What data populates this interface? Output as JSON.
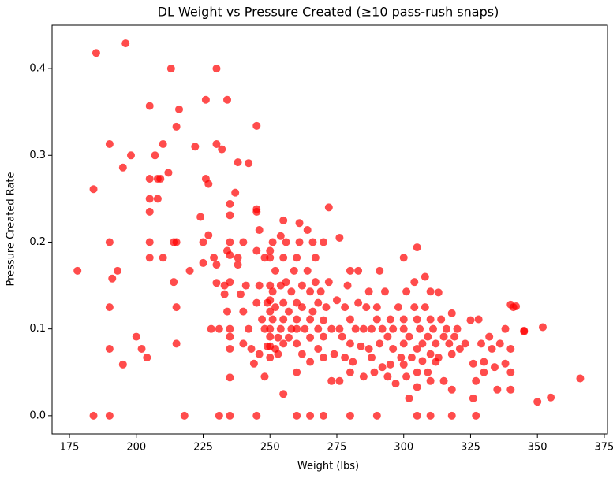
{
  "chart_data": {
    "type": "scatter",
    "title": "DL Weight vs Pressure Created (≥10 pass-rush snaps)",
    "x_label": "Weight (lbs)",
    "y_label": "Pressure Created Rate",
    "color": "#ff0000",
    "xlim": [
      168.5,
      376.2
    ],
    "ylim": [
      -0.021,
      0.45
    ],
    "xticks": [
      175,
      200,
      225,
      250,
      275,
      300,
      325,
      350,
      375
    ],
    "yticks": [
      {
        "value": 0,
        "label": "0.0"
      },
      0.1,
      0.2,
      0.3,
      0.4
    ],
    "x": [
      178,
      184,
      184,
      185,
      190,
      190,
      190,
      190,
      190,
      191,
      193,
      195,
      195,
      196,
      198,
      200,
      202,
      204,
      205,
      205,
      205,
      205,
      205,
      205,
      207,
      208,
      208,
      209,
      210,
      210,
      212,
      213,
      214,
      214,
      215,
      215,
      215,
      215,
      216,
      218,
      220,
      222,
      224,
      225,
      225,
      226,
      226,
      227,
      227,
      228,
      229,
      230,
      230,
      230,
      230,
      231,
      231,
      232,
      233,
      233,
      234,
      234,
      234,
      235,
      235,
      235,
      235,
      235,
      235,
      235,
      235,
      235,
      235,
      237,
      238,
      238,
      238,
      239,
      240,
      240,
      240,
      241,
      242,
      242,
      243,
      244,
      245,
      245,
      245,
      245,
      245,
      245,
      246,
      246,
      246,
      247,
      248,
      248,
      248,
      249,
      249,
      250,
      250,
      250,
      250,
      250,
      250,
      250,
      250,
      250,
      251,
      251,
      251,
      252,
      252,
      252,
      253,
      253,
      254,
      254,
      254,
      255,
      255,
      255,
      255,
      255,
      255,
      256,
      256,
      257,
      257,
      258,
      258,
      259,
      260,
      260,
      260,
      260,
      260,
      260,
      260,
      261,
      261,
      262,
      262,
      262,
      263,
      264,
      264,
      265,
      265,
      265,
      265,
      265,
      266,
      266,
      267,
      267,
      268,
      268,
      268,
      269,
      270,
      270,
      270,
      270,
      270,
      271,
      272,
      272,
      273,
      273,
      274,
      275,
      276,
      276,
      276,
      277,
      278,
      278,
      279,
      280,
      280,
      280,
      280,
      280,
      281,
      282,
      283,
      283,
      284,
      285,
      285,
      286,
      287,
      287,
      288,
      288,
      289,
      290,
      290,
      290,
      291,
      291,
      292,
      292,
      293,
      294,
      294,
      295,
      295,
      296,
      296,
      297,
      298,
      299,
      300,
      300,
      300,
      300,
      300,
      301,
      301,
      302,
      302,
      303,
      304,
      304,
      305,
      305,
      305,
      305,
      305,
      305,
      306,
      307,
      307,
      308,
      308,
      309,
      309,
      310,
      310,
      310,
      310,
      310,
      311,
      312,
      312,
      313,
      313,
      314,
      315,
      315,
      316,
      317,
      318,
      318,
      318,
      318,
      319,
      320,
      321,
      323,
      325,
      326,
      326,
      327,
      327,
      328,
      329,
      330,
      330,
      332,
      333,
      334,
      335,
      336,
      338,
      338,
      340,
      340,
      340,
      340,
      341,
      342,
      345,
      345,
      350,
      352,
      355,
      366
    ],
    "values": [
      0.167,
      0.261,
      0,
      0.418,
      0,
      0.313,
      0.2,
      0.125,
      0.077,
      0.158,
      0.167,
      0.286,
      0.059,
      0.429,
      0.3,
      0.091,
      0.077,
      0.067,
      0.357,
      0.273,
      0.25,
      0.235,
      0.2,
      0.182,
      0.3,
      0.273,
      0.25,
      0.273,
      0.313,
      0.182,
      0.28,
      0.4,
      0.2,
      0.154,
      0.333,
      0.2,
      0.125,
      0.083,
      0.353,
      0,
      0.167,
      0.31,
      0.229,
      0.176,
      0.2,
      0.273,
      0.364,
      0.267,
      0.208,
      0.1,
      0.182,
      0.4,
      0.313,
      0.174,
      0.153,
      0.1,
      0,
      0.307,
      0.15,
      0.14,
      0.364,
      0.19,
      0.12,
      0.244,
      0.231,
      0.2,
      0.185,
      0.154,
      0.1,
      0.091,
      0.077,
      0.044,
      0,
      0.257,
      0.292,
      0.182,
      0.174,
      0.14,
      0.2,
      0.12,
      0.083,
      0.15,
      0.291,
      0.1,
      0.077,
      0.06,
      0.334,
      0.238,
      0.235,
      0.19,
      0.13,
      0,
      0.214,
      0.15,
      0.071,
      0.111,
      0.182,
      0.1,
      0.045,
      0.13,
      0.08,
      0.19,
      0.182,
      0.15,
      0.133,
      0.12,
      0.1,
      0.091,
      0.08,
      0.067,
      0.2,
      0.143,
      0.111,
      0.167,
      0.125,
      0.077,
      0.09,
      0.071,
      0.207,
      0.15,
      0.1,
      0.225,
      0.182,
      0.13,
      0.111,
      0.083,
      0.025,
      0.154,
      0.2,
      0.12,
      0.09,
      0.143,
      0.1,
      0.167,
      0.182,
      0.13,
      0.111,
      0.1,
      0.083,
      0.05,
      0,
      0.222,
      0.2,
      0.15,
      0.125,
      0.071,
      0.1,
      0.214,
      0.167,
      0.143,
      0.111,
      0.09,
      0.062,
      0,
      0.2,
      0.12,
      0.182,
      0.154,
      0.13,
      0.1,
      0.077,
      0.143,
      0.2,
      0.11,
      0.091,
      0.067,
      0,
      0.125,
      0.24,
      0.154,
      0.1,
      0.04,
      0.071,
      0.133,
      0.205,
      0.1,
      0.04,
      0.091,
      0.125,
      0.067,
      0.15,
      0.167,
      0.111,
      0.083,
      0.05,
      0,
      0.062,
      0.1,
      0.167,
      0.13,
      0.08,
      0.1,
      0.045,
      0.125,
      0.143,
      0.077,
      0.1,
      0.067,
      0.05,
      0.125,
      0.111,
      0,
      0.167,
      0.083,
      0.1,
      0.056,
      0.143,
      0.091,
      0.045,
      0.111,
      0.059,
      0.1,
      0.077,
      0.037,
      0.125,
      0.067,
      0.182,
      0.111,
      0.083,
      0.059,
      0.1,
      0.143,
      0.045,
      0.091,
      0.02,
      0.067,
      0.154,
      0.125,
      0.194,
      0.111,
      0.077,
      0.05,
      0.033,
      0,
      0.1,
      0.083,
      0.063,
      0.16,
      0.125,
      0.091,
      0.05,
      0.143,
      0.111,
      0.071,
      0.04,
      0,
      0.1,
      0.083,
      0.062,
      0.142,
      0.067,
      0.111,
      0.091,
      0.04,
      0.1,
      0.083,
      0.118,
      0.071,
      0.03,
      0,
      0.091,
      0.1,
      0.077,
      0.083,
      0.11,
      0.02,
      0.06,
      0.04,
      0,
      0.111,
      0.083,
      0.062,
      0.05,
      0.091,
      0.077,
      0.056,
      0.03,
      0.083,
      0.1,
      0.06,
      0.128,
      0.077,
      0.05,
      0.03,
      0.125,
      0.126,
      0.097,
      0.098,
      0.016,
      0.102,
      0.021,
      0.043
    ]
  }
}
